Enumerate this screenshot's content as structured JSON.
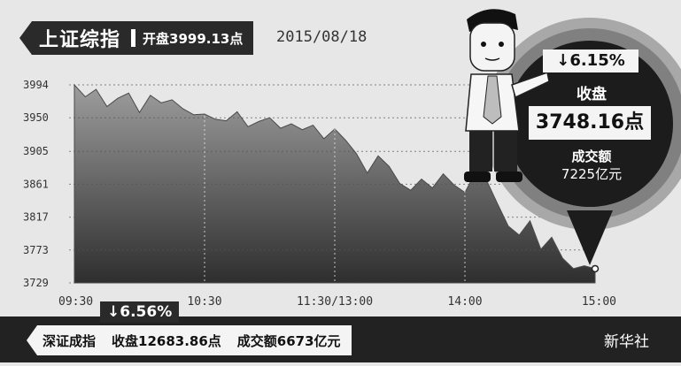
{
  "header": {
    "index_name": "上证综指",
    "open_text": "开盘3999.13点",
    "date": "2015/08/18"
  },
  "callout": {
    "change": "↓6.15%",
    "close_label": "收盘",
    "close_value": "3748.16点",
    "volume_label": "成交额",
    "volume_value": "7225亿元"
  },
  "footer": {
    "index_name": "深证成指",
    "change": "↓6.56%",
    "close_text": "收盘12683.86点",
    "volume_text": "成交额6673亿元",
    "publisher": "新华社"
  },
  "colors": {
    "background": "#e7e7e7",
    "area_top": "#9d9d9d",
    "area_bottom": "#2e2e2e",
    "banner": "#2a2a2a",
    "ring_outer": "#a8a8a8",
    "ring_mid": "#808080",
    "bubble": "#1c1c1c"
  },
  "chart_data": {
    "type": "area",
    "title": "",
    "xlabel": "",
    "ylabel": "",
    "x_ticks": [
      "09:30",
      "10:30",
      "11:30/13:00",
      "14:00",
      "15:00"
    ],
    "y_ticks": [
      3729,
      3773,
      3817,
      3861,
      3905,
      3950,
      3994
    ],
    "ylim": [
      3729,
      3994
    ],
    "grid": "horizontal dotted, vertical dotted at x ticks",
    "series": [
      {
        "x": [
          0,
          5,
          10,
          15,
          20,
          25,
          30,
          35,
          40,
          45,
          50,
          55,
          60,
          65,
          70,
          75,
          80,
          85,
          90,
          95,
          100,
          105,
          110,
          115,
          120,
          125,
          130,
          135,
          140,
          145,
          150,
          155,
          160,
          165,
          170,
          175,
          180,
          185,
          190,
          195,
          200,
          205,
          210,
          215,
          220,
          225,
          230,
          235,
          240
        ],
        "values": [
          3994,
          3978,
          3988,
          3965,
          3976,
          3983,
          3957,
          3980,
          3970,
          3974,
          3962,
          3954,
          3955,
          3948,
          3946,
          3958,
          3938,
          3945,
          3950,
          3936,
          3942,
          3934,
          3940,
          3922,
          3935,
          3920,
          3902,
          3876,
          3899,
          3885,
          3862,
          3853,
          3868,
          3856,
          3875,
          3860,
          3850,
          3878,
          3866,
          3835,
          3805,
          3793,
          3812,
          3774,
          3790,
          3762,
          3748,
          3752,
          3748
        ]
      }
    ]
  }
}
